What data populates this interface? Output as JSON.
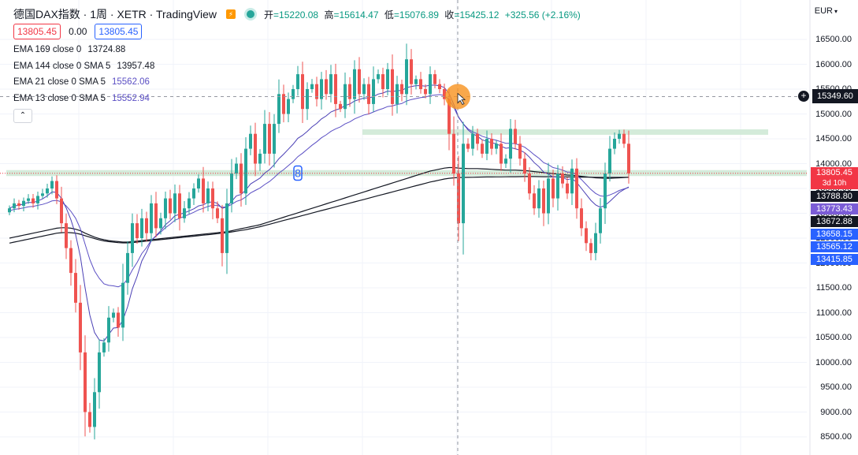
{
  "header": {
    "title": "德国DAX指数 · 1周 · XETR · TradingView",
    "ohlc": [
      {
        "label": "开",
        "value": "=15220.08"
      },
      {
        "label": "高",
        "value": "=15614.47"
      },
      {
        "label": "低",
        "value": "=15076.89"
      },
      {
        "label": "收",
        "value": "=15425.12"
      },
      {
        "label": "",
        "value": "+325.56 (+2.16%)"
      }
    ],
    "bid": "13805.45",
    "spread": "0.00",
    "ask": "13805.45"
  },
  "legend": [
    {
      "name": "EMA 169 close 0",
      "value": "13724.88",
      "color": "#131722"
    },
    {
      "name": "EMA 144 close 0 SMA 5",
      "value": "13957.48",
      "color": "#131722"
    },
    {
      "name": "EMA 21 close 0 SMA 5",
      "value": "15562.06",
      "color": "#5b4fc4"
    },
    {
      "name": "EMA 13 close 0 SMA 5",
      "value": "15552.94",
      "color": "#5b4fc4"
    }
  ],
  "collapse_label": "⌃",
  "currency": "EUR",
  "crosshair_price": "15349.60",
  "axis_labels": [
    {
      "text": "13805.45",
      "sub": "3d 10h",
      "value": 13805.45,
      "color": "#f23645"
    },
    {
      "text": "13788.80",
      "value": 13788.8,
      "color": "#131722"
    },
    {
      "text": "13773.43",
      "value": 13773.43,
      "color": "#7b5cd6"
    },
    {
      "text": "13672.88",
      "value": 13672.88,
      "color": "#131722"
    },
    {
      "text": "13658.15",
      "value": 13658.15,
      "color": "#2962ff"
    },
    {
      "text": "13565.12",
      "value": 13565.12,
      "color": "#2962ff"
    },
    {
      "text": "13415.85",
      "value": 13415.85,
      "color": "#2962ff"
    }
  ],
  "colors": {
    "up": "#26a69a",
    "down": "#ef5350",
    "band": "#cfe9d6"
  },
  "chart_data": {
    "type": "candlestick",
    "y_ticks": [
      16500,
      16000,
      15500,
      15000,
      14500,
      14000,
      13500,
      13000,
      12500,
      12000,
      11500,
      11000,
      10500,
      10000,
      9500,
      9000,
      8500
    ],
    "y_tick_labels": [
      "16500.00",
      "16000.00",
      "15500.00",
      "15000.00",
      "14500.00",
      "14000.00",
      "13500.00",
      "13000.00",
      "12500.00",
      "12000.00",
      "11500.00",
      "11000.00",
      "10500.00",
      "10000.00",
      "9500.00",
      "9000.00",
      "8500.00"
    ],
    "ylim": [
      8300,
      16800
    ],
    "support_bands": [
      [
        13750,
        13870
      ],
      [
        14580,
        14690
      ]
    ],
    "marker_label": "8",
    "closes": [
      13100,
      13200,
      13150,
      13250,
      13300,
      13200,
      13350,
      13400,
      13500,
      13650,
      13300,
      12800,
      12300,
      11800,
      11200,
      10200,
      9000,
      8700,
      9400,
      10200,
      10400,
      10900,
      11000,
      10700,
      11600,
      12200,
      12800,
      12500,
      12900,
      12600,
      13200,
      12700,
      12900,
      13300,
      13000,
      13400,
      12900,
      13100,
      13300,
      13500,
      13700,
      13200,
      13500,
      13100,
      12900,
      12200,
      13200,
      13800,
      14000,
      13400,
      14300,
      14600,
      14000,
      14200,
      14800,
      14200,
      14800,
      15400,
      15000,
      15300,
      15500,
      15800,
      15100,
      15500,
      15600,
      15300,
      15700,
      15400,
      15800,
      15200,
      15100,
      15600,
      15300,
      15900,
      15400,
      15600,
      15200,
      15700,
      15800,
      15500,
      15900,
      15200,
      15600,
      15400,
      16100,
      15600,
      15700,
      15500,
      15400,
      15800,
      15600,
      15500,
      15300,
      14600,
      13800,
      12800,
      14400,
      14300,
      14600,
      14400,
      14200,
      14500,
      14300,
      14400,
      14000,
      14100,
      14700,
      14400,
      14100,
      13800,
      13400,
      13100,
      13500,
      13000,
      13700,
      13300,
      13800,
      13600,
      13400,
      13900,
      13100,
      12700,
      12400,
      12200,
      12600,
      13100,
      13800,
      14300,
      14500,
      14600,
      14400,
      13805.45
    ],
    "ema_fast": [
      13100,
      13150,
      13160,
      13190,
      13220,
      13215,
      13250,
      13290,
      13350,
      13430,
      13420,
      13300,
      13110,
      12870,
      12570,
      12130,
      11500,
      10950,
      10600,
      10450,
      10430,
      10560,
      10690,
      10700,
      10850,
      11120,
      11480,
      11730,
      12040,
      12220,
      12450,
      12550,
      12650,
      12770,
      12850,
      12950,
      12980,
      13010,
      13050,
      13090,
      13150,
      13170,
      13220,
      13230,
      13200,
      13100,
      13130,
      13240,
      13350,
      13380,
      13470,
      13590,
      13650,
      13710,
      13810,
      13880,
      13980,
      14100,
      14190,
      14290,
      14390,
      14510,
      14570,
      14650,
      14740,
      14810,
      14900,
      14960,
      15040,
      15080,
      15110,
      15170,
      15200,
      15260,
      15290,
      15320,
      15320,
      15350,
      15400,
      15420,
      15460,
      15450,
      15470,
      15470,
      15530,
      15550,
      15570,
      15570,
      15560,
      15580,
      15580,
      15570,
      15530,
      15410,
      15190,
      14940,
      14800,
      14680,
      14600,
      14550,
      14480,
      14450,
      14420,
      14400,
      14350,
      14310,
      14320,
      14300,
      14270,
      14220,
      14130,
      14020,
      13940,
      13830,
      13790,
      13730,
      13730,
      13720,
      13680,
      13700,
      13620,
      13500,
      13380,
      13260,
      13170,
      13120,
      13160,
      13240,
      13330,
      13420,
      13480,
      13530
    ],
    "ema_slow": [
      13050,
      13080,
      13090,
      13110,
      13130,
      13140,
      13160,
      13180,
      13210,
      13250,
      13260,
      13230,
      13150,
      13040,
      12900,
      12690,
      12380,
      12070,
      11840,
      11690,
      11580,
      11550,
      11540,
      11520,
      11560,
      11680,
      11860,
      12010,
      12190,
      12310,
      12460,
      12540,
      12620,
      12710,
      12780,
      12860,
      12900,
      12940,
      12980,
      13020,
      13070,
      13100,
      13140,
      13160,
      13160,
      13120,
      13130,
      13180,
      13240,
      13270,
      13330,
      13410,
      13460,
      13510,
      13580,
      13640,
      13720,
      13810,
      13880,
      13960,
      14040,
      14140,
      14210,
      14290,
      14370,
      14440,
      14520,
      14580,
      14650,
      14700,
      14740,
      14800,
      14840,
      14900,
      14940,
      14980,
      15000,
      15040,
      15080,
      15110,
      15150,
      15160,
      15190,
      15210,
      15260,
      15290,
      15310,
      15330,
      15340,
      15370,
      15380,
      15390,
      15370,
      15290,
      15130,
      14930,
      14800,
      14700,
      14640,
      14600,
      14550,
      14520,
      14490,
      14470,
      14440,
      14410,
      14410,
      14400,
      14370,
      14330,
      14260,
      14180,
      14110,
      14020,
      13980,
      13920,
      13900,
      13870,
      13830,
      13830,
      13770,
      13680,
      13580,
      13480,
      13400,
      13350,
      13340,
      13370,
      13410,
      13460,
      13490,
      13520
    ],
    "ma_long1": [
      12500,
      12520,
      12540,
      12560,
      12580,
      12600,
      12620,
      12640,
      12660,
      12680,
      12700,
      12710,
      12710,
      12700,
      12680,
      12650,
      12600,
      12560,
      12520,
      12490,
      12470,
      12450,
      12440,
      12430,
      12420,
      12420,
      12430,
      12440,
      12450,
      12460,
      12470,
      12480,
      12490,
      12500,
      12510,
      12520,
      12530,
      12540,
      12550,
      12560,
      12570,
      12580,
      12590,
      12600,
      12610,
      12620,
      12630,
      12650,
      12670,
      12690,
      12710,
      12730,
      12750,
      12770,
      12800,
      12830,
      12860,
      12890,
      12920,
      12950,
      12980,
      13010,
      13040,
      13070,
      13100,
      13130,
      13160,
      13190,
      13220,
      13250,
      13280,
      13310,
      13340,
      13370,
      13400,
      13430,
      13460,
      13490,
      13520,
      13550,
      13580,
      13610,
      13640,
      13670,
      13700,
      13730,
      13760,
      13790,
      13820,
      13850,
      13870,
      13890,
      13910,
      13920,
      13920,
      13910,
      13905,
      13900,
      13900,
      13900,
      13895,
      13890,
      13885,
      13880,
      13875,
      13870,
      13870,
      13870,
      13865,
      13860,
      13850,
      13840,
      13830,
      13820,
      13810,
      13800,
      13790,
      13780,
      13770,
      13765,
      13755,
      13745,
      13735,
      13725,
      13715,
      13710,
      13705,
      13705,
      13710,
      13715,
      13720,
      13725
    ],
    "ma_long2": [
      12400,
      12420,
      12440,
      12460,
      12480,
      12500,
      12520,
      12540,
      12560,
      12580,
      12600,
      12610,
      12615,
      12610,
      12600,
      12580,
      12550,
      12520,
      12490,
      12465,
      12445,
      12430,
      12420,
      12410,
      12405,
      12405,
      12410,
      12420,
      12430,
      12440,
      12450,
      12460,
      12470,
      12480,
      12490,
      12500,
      12510,
      12520,
      12530,
      12540,
      12550,
      12560,
      12570,
      12580,
      12590,
      12600,
      12610,
      12625,
      12640,
      12655,
      12670,
      12690,
      12710,
      12730,
      12755,
      12780,
      12805,
      12830,
      12855,
      12880,
      12905,
      12930,
      12955,
      12980,
      13005,
      13030,
      13055,
      13080,
      13105,
      13130,
      13155,
      13180,
      13205,
      13230,
      13255,
      13280,
      13305,
      13330,
      13355,
      13380,
      13405,
      13430,
      13455,
      13480,
      13505,
      13530,
      13555,
      13580,
      13605,
      13630,
      13650,
      13670,
      13690,
      13705,
      13715,
      13720,
      13722,
      13724,
      13726,
      13728,
      13730,
      13731,
      13732,
      13733,
      13734,
      13735,
      13736,
      13737,
      13738,
      13739,
      13739,
      13739,
      13738,
      13737,
      13736,
      13735,
      13734,
      13733,
      13732,
      13731,
      13730,
      13729,
      13728,
      13727,
      13726,
      13725,
      13725,
      13725,
      13725,
      13725,
      13725,
      13725
    ]
  }
}
